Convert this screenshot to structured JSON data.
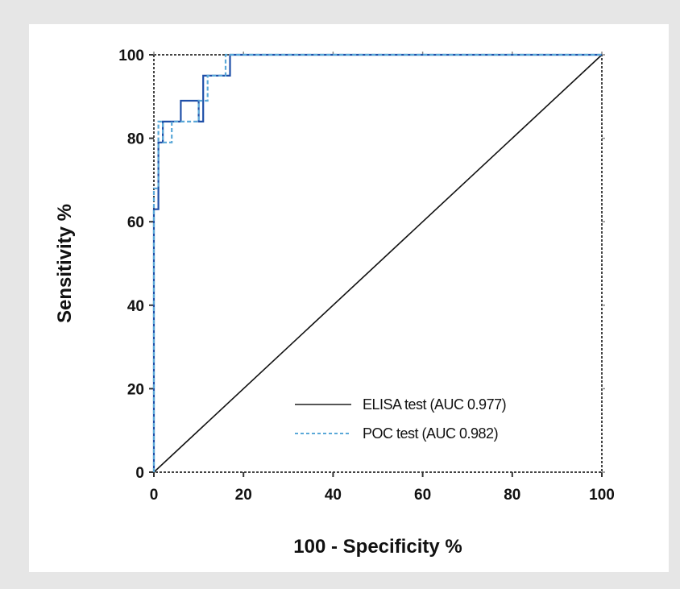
{
  "chart_data": {
    "type": "line",
    "xlabel": "100 - Specificity %",
    "ylabel": "Sensitivity %",
    "xlim": [
      0,
      100
    ],
    "ylim": [
      0,
      100
    ],
    "x_ticks": [
      0,
      20,
      40,
      60,
      80,
      100
    ],
    "y_ticks": [
      0,
      20,
      40,
      60,
      80,
      100
    ],
    "x_tick_labels": [
      "0",
      "20",
      "40",
      "60",
      "80",
      "100"
    ],
    "y_tick_labels": [
      "0",
      "20",
      "40",
      "60",
      "80",
      "100"
    ],
    "grid": false,
    "legend_position": "bottom-right",
    "series": [
      {
        "name": "ELISA test (AUC 0.977)",
        "color": "#1f4fa8",
        "style": "solid",
        "x": [
          0,
          0,
          1,
          1,
          2,
          2,
          6,
          6,
          10,
          10,
          11,
          11,
          17,
          17,
          100
        ],
        "y": [
          0,
          63,
          63,
          79,
          79,
          84,
          84,
          89,
          89,
          84,
          84,
          95,
          95,
          100,
          100
        ]
      },
      {
        "name": "POC test (AUC 0.982)",
        "color": "#5aa8d8",
        "style": "dashed",
        "x": [
          0,
          0,
          1,
          1,
          2,
          2,
          4,
          4,
          10,
          10,
          12,
          12,
          16,
          16,
          100
        ],
        "y": [
          0,
          68,
          68,
          84,
          84,
          79,
          79,
          84,
          84,
          89,
          89,
          95,
          95,
          100,
          100
        ]
      },
      {
        "name": "",
        "color": "#111111",
        "style": "solid",
        "x": [
          0,
          100
        ],
        "y": [
          0,
          100
        ]
      }
    ]
  }
}
